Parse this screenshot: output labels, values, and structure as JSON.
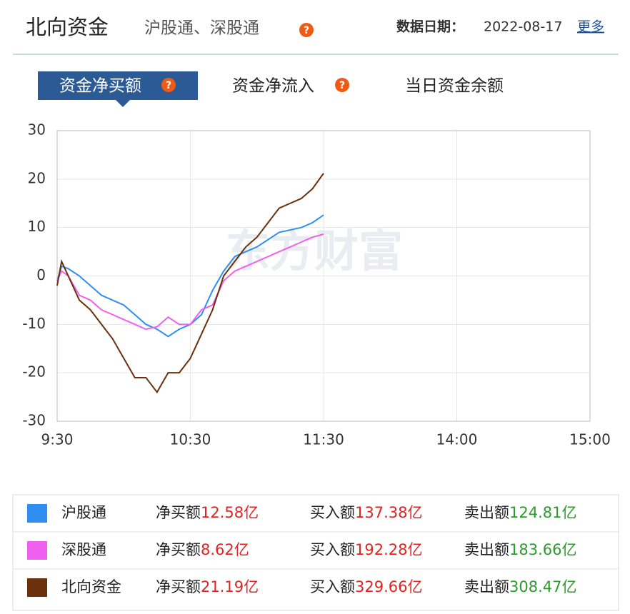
{
  "header": {
    "title": "北向资金",
    "subtitle": "沪股通、深股通",
    "date_label": "数据日期：",
    "date": "2022-08-17",
    "more": "更多"
  },
  "tabs": [
    "资金净买额",
    "资金净流入",
    "当日资金余额"
  ],
  "chart_data": {
    "type": "line",
    "watermark": "东方财富",
    "x": [
      0,
      2,
      5,
      10,
      15,
      20,
      25,
      30,
      35,
      40,
      45,
      50,
      55,
      60,
      65,
      70,
      75,
      80,
      85,
      90,
      95,
      100,
      105,
      110,
      115,
      120
    ],
    "xlim": [
      0,
      240
    ],
    "xticks": [
      {
        "value": 0,
        "label": "9:30"
      },
      {
        "value": 60,
        "label": "10:30"
      },
      {
        "value": 120,
        "label": "11:30"
      },
      {
        "value": 180,
        "label": "14:00"
      },
      {
        "value": 240,
        "label": "15:00"
      }
    ],
    "ylim": [
      -30,
      30
    ],
    "yticks": [
      -30,
      -20,
      -10,
      0,
      10,
      20,
      30
    ],
    "grid": true,
    "series": [
      {
        "name": "沪股通",
        "color": "#2f8ff0",
        "values": [
          -1,
          2,
          1.5,
          0,
          -2,
          -4,
          -5,
          -6,
          -8,
          -10,
          -11,
          -12.5,
          -11,
          -10,
          -8,
          -3,
          1,
          4,
          5,
          6,
          7.5,
          9,
          9.5,
          10,
          11,
          12.58
        ]
      },
      {
        "name": "深股通",
        "color": "#f060f0",
        "values": [
          -1,
          1,
          0,
          -4,
          -5,
          -7,
          -8,
          -9,
          -10,
          -11,
          -10.5,
          -8.5,
          -10,
          -10,
          -7,
          -6,
          -1,
          1,
          2,
          3,
          4,
          5,
          6,
          7,
          8,
          8.62
        ]
      },
      {
        "name": "北向资金",
        "color": "#6b300c",
        "values": [
          -2,
          3,
          0,
          -5,
          -7,
          -10,
          -13,
          -17,
          -21,
          -21,
          -24,
          -20,
          -20,
          -17,
          -12,
          -7,
          0,
          3,
          6,
          8,
          11,
          14,
          15,
          16,
          18,
          21.19
        ]
      }
    ],
    "summary_labels": [
      "净买额",
      "买入额",
      "卖出额"
    ],
    "summary": [
      {
        "net": "12.58亿",
        "buy": "137.38亿",
        "sell": "124.81亿"
      },
      {
        "net": "8.62亿",
        "buy": "192.28亿",
        "sell": "183.66亿"
      },
      {
        "net": "21.19亿",
        "buy": "329.66亿",
        "sell": "308.47亿"
      }
    ]
  }
}
